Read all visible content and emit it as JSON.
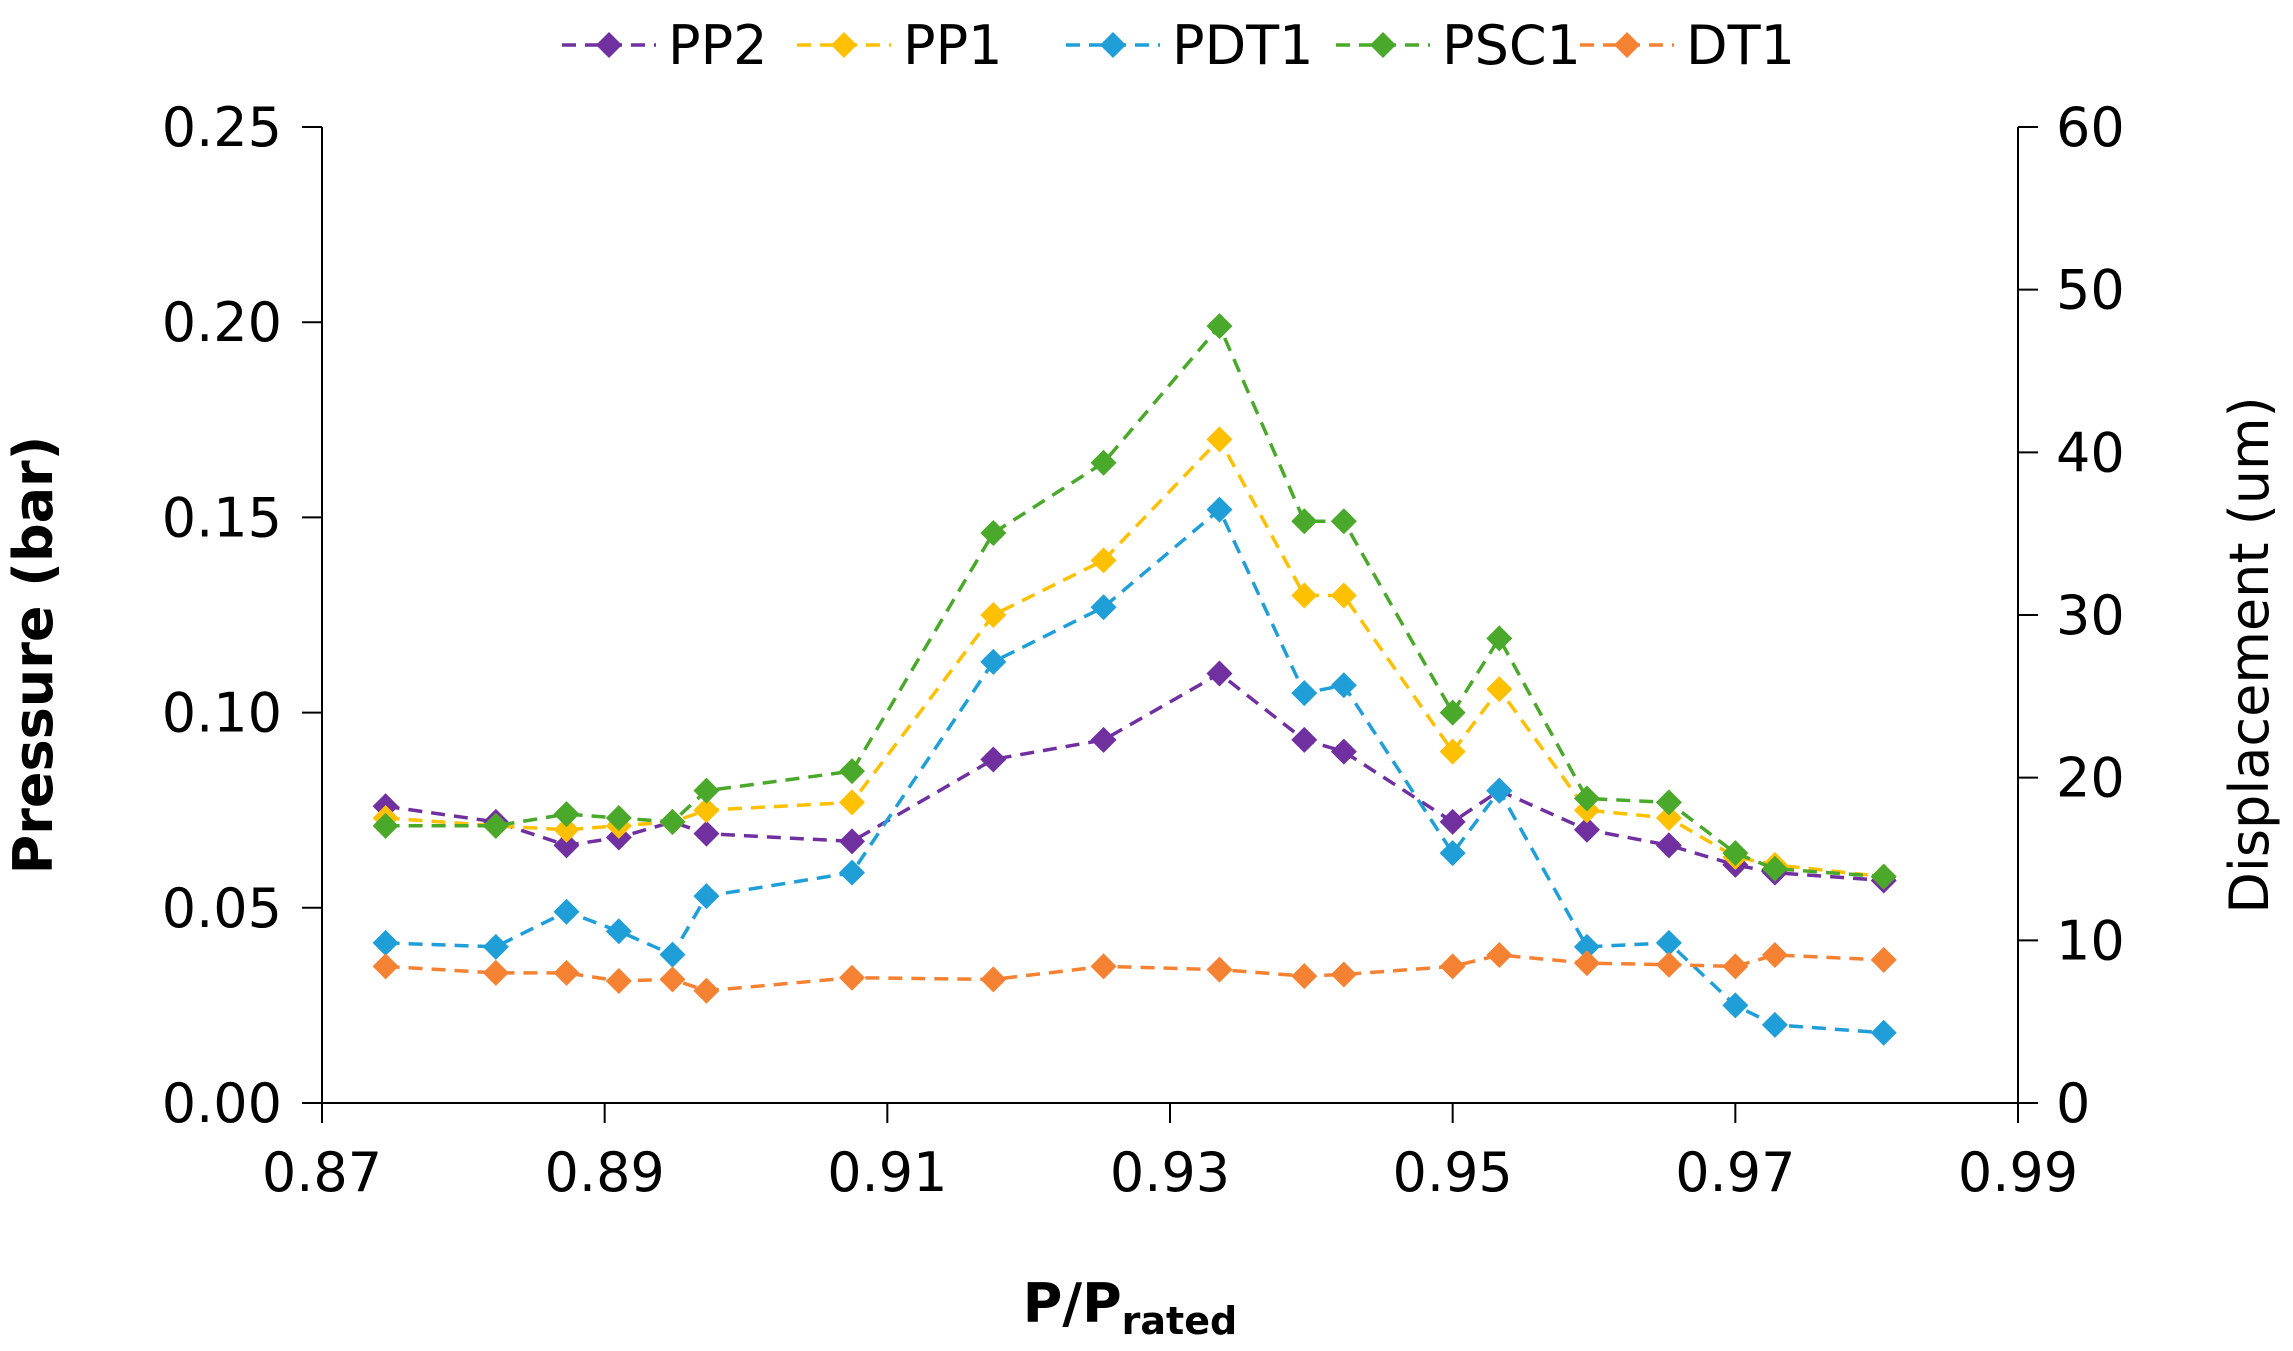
{
  "chart_data": {
    "type": "line",
    "title": "",
    "xlabel_main": "P/P",
    "xlabel_sub": "rated",
    "ylabel": "Pressure (bar)",
    "y2label": "Displacement (um)",
    "xlim": [
      0.87,
      0.99
    ],
    "ylim": [
      0,
      0.25
    ],
    "y2lim": [
      0,
      60
    ],
    "grid": false,
    "legend_position": "top-center",
    "x_ticks": [
      "0.87",
      "0.89",
      "0.91",
      "0.93",
      "0.95",
      "0.97",
      "0.99"
    ],
    "x_tick_values": [
      0.87,
      0.89,
      0.91,
      0.93,
      0.95,
      0.97,
      0.99
    ],
    "y_ticks": [
      "0.00",
      "0.05",
      "0.10",
      "0.15",
      "0.20",
      "0.25"
    ],
    "y_tick_values": [
      0,
      0.05,
      0.1,
      0.15,
      0.2,
      0.25
    ],
    "y2_ticks": [
      "0",
      "10",
      "20",
      "30",
      "40",
      "50",
      "60"
    ],
    "y2_tick_values": [
      0,
      10,
      20,
      30,
      40,
      50,
      60
    ],
    "series": [
      {
        "name": "PP2",
        "color": "#7030A0",
        "axis": "left",
        "x": [
          0.8745,
          0.8823,
          0.8873,
          0.891,
          0.8948,
          0.8972,
          0.9075,
          0.9175,
          0.9253,
          0.9335,
          0.9395,
          0.9423,
          0.95,
          0.9533,
          0.9595,
          0.9653,
          0.97,
          0.9728,
          0.9805
        ],
        "values": [
          0.076,
          0.072,
          0.066,
          0.068,
          0.072,
          0.069,
          0.067,
          0.088,
          0.093,
          0.11,
          0.093,
          0.09,
          0.072,
          0.08,
          0.07,
          0.066,
          0.061,
          0.059,
          0.057
        ]
      },
      {
        "name": "PP1",
        "color": "#FFC000",
        "axis": "left",
        "x": [
          0.8745,
          0.8823,
          0.8873,
          0.891,
          0.8948,
          0.8972,
          0.9075,
          0.9175,
          0.9253,
          0.9335,
          0.9395,
          0.9423,
          0.95,
          0.9533,
          0.9595,
          0.9653,
          0.97,
          0.9728,
          0.9805
        ],
        "values": [
          0.073,
          0.071,
          0.07,
          0.071,
          0.072,
          0.075,
          0.077,
          0.125,
          0.139,
          0.17,
          0.13,
          0.13,
          0.09,
          0.106,
          0.075,
          0.073,
          0.063,
          0.061,
          0.058
        ]
      },
      {
        "name": "PDT1",
        "color": "#1F9ED8",
        "axis": "left",
        "x": [
          0.8745,
          0.8823,
          0.8873,
          0.891,
          0.8948,
          0.8972,
          0.9075,
          0.9175,
          0.9253,
          0.9335,
          0.9395,
          0.9423,
          0.95,
          0.9533,
          0.9595,
          0.9653,
          0.97,
          0.9728,
          0.9805
        ],
        "values": [
          0.041,
          0.04,
          0.049,
          0.044,
          0.038,
          0.053,
          0.059,
          0.113,
          0.127,
          0.152,
          0.105,
          0.107,
          0.064,
          0.08,
          0.04,
          0.041,
          0.025,
          0.02,
          0.018
        ]
      },
      {
        "name": "PSC1",
        "color": "#4AA82B",
        "axis": "left",
        "x": [
          0.8745,
          0.8823,
          0.8873,
          0.891,
          0.8948,
          0.8972,
          0.9075,
          0.9175,
          0.9253,
          0.9335,
          0.9395,
          0.9423,
          0.95,
          0.9533,
          0.9595,
          0.9653,
          0.97,
          0.9728,
          0.9805
        ],
        "values": [
          0.071,
          0.071,
          0.074,
          0.073,
          0.072,
          0.08,
          0.085,
          0.146,
          0.164,
          0.199,
          0.149,
          0.149,
          0.1,
          0.119,
          0.078,
          0.077,
          0.064,
          0.06,
          0.058
        ]
      },
      {
        "name": "DT1",
        "color": "#F58233",
        "axis": "right",
        "x": [
          0.8745,
          0.8823,
          0.8873,
          0.891,
          0.8948,
          0.8972,
          0.9075,
          0.9175,
          0.9253,
          0.9335,
          0.9395,
          0.9423,
          0.95,
          0.9533,
          0.9595,
          0.9653,
          0.97,
          0.9728,
          0.9805
        ],
        "values": [
          8.4,
          8.0,
          8.0,
          7.5,
          7.6,
          6.9,
          7.7,
          7.6,
          8.4,
          8.2,
          7.8,
          7.9,
          8.4,
          9.1,
          8.6,
          8.5,
          8.4,
          9.1,
          8.8
        ]
      }
    ]
  }
}
